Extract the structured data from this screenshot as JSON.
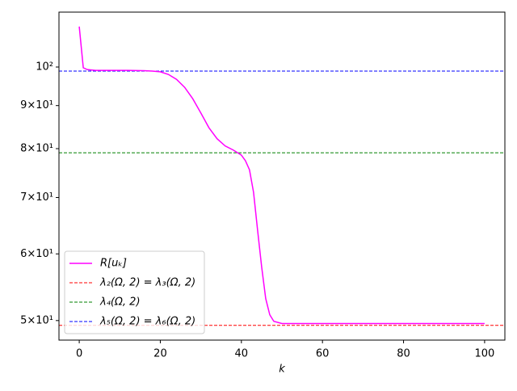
{
  "chart_data": {
    "type": "line",
    "xlabel": "k",
    "x": [
      0,
      1,
      2,
      4,
      8,
      12,
      16,
      18,
      20,
      22,
      24,
      26,
      28,
      30,
      32,
      34,
      36,
      38,
      40,
      41,
      42,
      43,
      44,
      45,
      46,
      47,
      48,
      50,
      60,
      70,
      80,
      90,
      100
    ],
    "series": [
      {
        "name": "R[uₖ]",
        "color": "#ff00ff",
        "values": [
          111.7,
          99.8,
          99.3,
          99.1,
          99.1,
          99.1,
          99.0,
          98.9,
          98.7,
          98.0,
          96.7,
          94.6,
          91.7,
          88.2,
          84.7,
          82.2,
          80.6,
          79.7,
          78.6,
          77.4,
          75.5,
          71.0,
          64.0,
          57.9,
          53.1,
          50.8,
          49.9,
          49.6,
          49.6,
          49.6,
          49.6,
          49.6,
          49.6
        ]
      }
    ],
    "hlines": [
      {
        "name": "λ₂(Ω, 2) = λ₃(Ω, 2)",
        "color": "#ff0000",
        "value": 49.35
      },
      {
        "name": "λ₄(Ω, 2)",
        "color": "#008000",
        "value": 79.1
      },
      {
        "name": "λ₅(Ω, 2) = λ₆(Ω, 2)",
        "color": "#0000ff",
        "value": 98.9
      }
    ],
    "xlim": [
      -5,
      105
    ],
    "xticks": [
      0,
      20,
      40,
      60,
      80,
      100
    ],
    "ylim": [
      47.4,
      116.2
    ],
    "yscale": "log",
    "yticks": [
      {
        "value": 50,
        "label": "5×10¹"
      },
      {
        "value": 60,
        "label": "6×10¹"
      },
      {
        "value": 70,
        "label": "7×10¹"
      },
      {
        "value": 80,
        "label": "8×10¹"
      },
      {
        "value": 90,
        "label": "9×10¹"
      },
      {
        "value": 100,
        "label": "10²"
      }
    ],
    "legend": "lower left"
  }
}
